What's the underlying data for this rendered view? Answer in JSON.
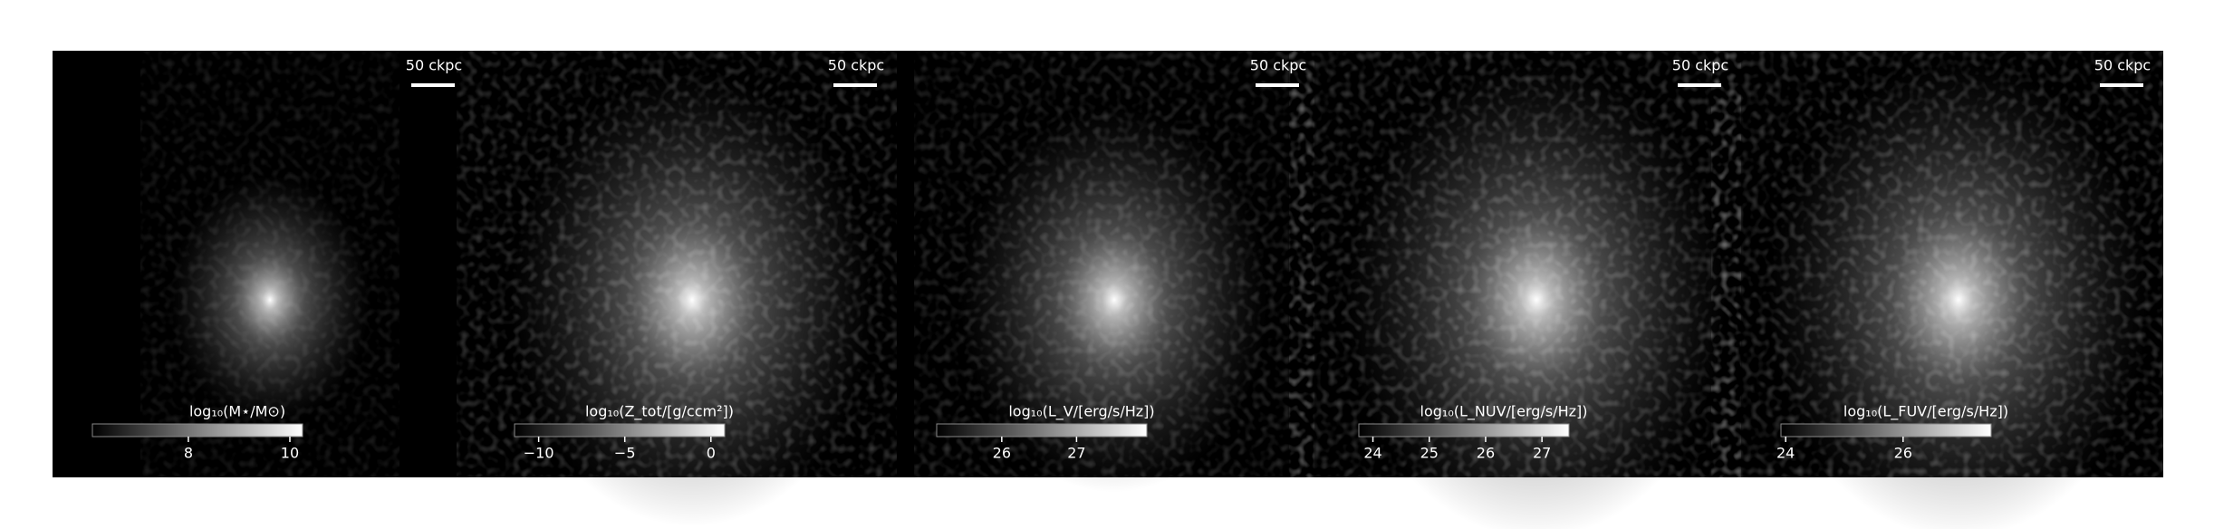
{
  "panels": [
    {
      "scale_label": "50 ckpc",
      "colorbar": {
        "label": "log₁₀(M⋆/M⊙)",
        "lim": [
          6.11,
          10.25
        ],
        "ticks": [
          8,
          10
        ]
      }
    },
    {
      "scale_label": "50 ckpc",
      "colorbar": {
        "label": "log₁₀(Z_tot/[g/ccm²])",
        "lim": [
          -11.4,
          0.8
        ],
        "ticks": [
          {
            "value": -10,
            "label": "−10"
          },
          {
            "value": -5,
            "label": "−5"
          },
          0
        ]
      }
    },
    {
      "scale_label": "50 ckpc",
      "colorbar": {
        "label": "log₁₀(L_V/[erg/s/Hz])",
        "lim": [
          25.13,
          27.94
        ],
        "ticks": [
          26,
          27
        ]
      }
    },
    {
      "scale_label": "50 ckpc",
      "colorbar": {
        "label": "log₁₀(L_NUV/[erg/s/Hz])",
        "lim": [
          23.75,
          27.48
        ],
        "ticks": [
          24,
          25,
          26,
          27
        ]
      }
    },
    {
      "scale_label": "50 ckpc",
      "colorbar": {
        "label": "log₁₀(L_FUV/[erg/s/Hz])",
        "lim": [
          23.92,
          27.5
        ],
        "ticks": [
          24,
          26
        ]
      }
    }
  ]
}
